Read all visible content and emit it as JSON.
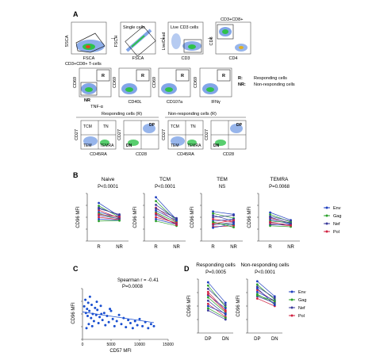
{
  "panel_letters": {
    "a": "A",
    "b": "B",
    "c": "C",
    "d": "D"
  },
  "panel_a": {
    "row1": {
      "plots": [
        {
          "y": "SSCA",
          "x": "FSCA"
        },
        {
          "y": "FSCH",
          "x": "FSCA"
        },
        {
          "y": "Live/Dead",
          "x": "CD3"
        },
        {
          "y": "CD8",
          "x": "CD4"
        }
      ],
      "gate_labels": [
        "Single cells",
        "Live CD3 cells",
        "CD3+CD8+"
      ]
    },
    "row2": {
      "group_label": "CD3+CD8+ T-cells",
      "plots": [
        {
          "y": "CD69",
          "x": "TNF-α"
        },
        {
          "y": "CD69",
          "x": "CD40L"
        },
        {
          "y": "CD69",
          "x": "CD107a"
        },
        {
          "y": "CD69",
          "x": "IFNγ"
        }
      ],
      "gate_r": "R",
      "gate_nr": "NR",
      "legend": {
        "r_key": "R:",
        "r_text": "Responding cells",
        "nr_key": "NR:",
        "nr_text": "Non-responding cells"
      }
    },
    "row3": {
      "responding_title": "Responding cells (R)",
      "nonresponding_title": "Non-responding cells (R)",
      "plots": [
        {
          "y": "CD27",
          "x": "CD45RA"
        },
        {
          "y": "CD27",
          "x": "CD28"
        },
        {
          "y": "CD27",
          "x": "CD45RA"
        },
        {
          "y": "CD27",
          "x": "CD28"
        }
      ],
      "quadrants": {
        "tcm": "TCM",
        "tn": "TN",
        "tem": "TEM",
        "temra": "TEMRA",
        "dp": "DP",
        "dn": "DN"
      }
    }
  },
  "panel_b": {
    "ylabel": "CD96 MFI",
    "charts": [
      {
        "title": "Naive",
        "pval": "P<0.0001"
      },
      {
        "title": "TCM",
        "pval": "P<0.0001"
      },
      {
        "title": "TEM",
        "pval": "NS"
      },
      {
        "title": "TEMRA",
        "pval": "P=0.0068"
      }
    ],
    "legend": [
      "Env",
      "Gag",
      "Nef",
      "Pol"
    ]
  },
  "panel_c": {
    "stat": "Spearman r = -0.41",
    "pval": "P=0.0008",
    "ylabel": "CD96 MFI",
    "xlabel": "CD57 MFI",
    "xticks": [
      "0",
      "5000",
      "10000",
      "15000"
    ]
  },
  "panel_d": {
    "ylabel": "CD96 MFI",
    "charts": [
      {
        "title": "Responding cells",
        "pval": "P=0.0005"
      },
      {
        "title": "Non-responding cells",
        "pval": "P<0.0001"
      }
    ],
    "legend": [
      "Env",
      "Gag",
      "Nef",
      "Pol"
    ]
  },
  "colors": {
    "Env": "#1f3fbf",
    "Gag": "#2aa02a",
    "Nef": "#3a3a9a",
    "Pol": "#d02040",
    "dots": "#1a4fd0"
  },
  "chart_data": [
    {
      "type": "line",
      "title": "Naive",
      "categories": [
        "R",
        "NR"
      ],
      "ylabel": "CD96 MFI",
      "series": [
        {
          "values": [
            8.0,
            5.2
          ]
        },
        {
          "values": [
            7.4,
            5.0
          ]
        },
        {
          "values": [
            7.0,
            5.4
          ]
        },
        {
          "values": [
            6.5,
            4.8
          ]
        },
        {
          "values": [
            6.1,
            4.9
          ]
        },
        {
          "values": [
            5.8,
            4.6
          ]
        },
        {
          "values": [
            5.4,
            4.7
          ]
        },
        {
          "values": [
            5.0,
            4.5
          ]
        },
        {
          "values": [
            4.6,
            4.4
          ]
        },
        {
          "values": [
            4.2,
            4.3
          ]
        },
        {
          "values": [
            6.8,
            5.6
          ]
        },
        {
          "values": [
            5.6,
            5.1
          ]
        }
      ]
    },
    {
      "type": "line",
      "title": "TCM",
      "categories": [
        "R",
        "NR"
      ],
      "ylabel": "CD96 MFI",
      "series": [
        {
          "values": [
            9.2,
            4.5
          ]
        },
        {
          "values": [
            8.4,
            4.2
          ]
        },
        {
          "values": [
            7.6,
            4.6
          ]
        },
        {
          "values": [
            7.0,
            4.0
          ]
        },
        {
          "values": [
            6.4,
            4.3
          ]
        },
        {
          "values": [
            6.0,
            3.9
          ]
        },
        {
          "values": [
            5.5,
            3.6
          ]
        },
        {
          "values": [
            5.0,
            3.8
          ]
        },
        {
          "values": [
            4.6,
            3.5
          ]
        },
        {
          "values": [
            4.2,
            3.2
          ]
        },
        {
          "values": [
            6.8,
            4.8
          ]
        },
        {
          "values": [
            5.8,
            3.4
          ]
        }
      ]
    },
    {
      "type": "line",
      "title": "TEM",
      "categories": [
        "R",
        "NR"
      ],
      "ylabel": "CD96 MFI",
      "series": [
        {
          "values": [
            6.2,
            5.6
          ]
        },
        {
          "values": [
            5.8,
            4.8
          ]
        },
        {
          "values": [
            5.0,
            5.4
          ]
        },
        {
          "values": [
            4.6,
            4.0
          ]
        },
        {
          "values": [
            4.2,
            4.6
          ]
        },
        {
          "values": [
            3.8,
            3.4
          ]
        },
        {
          "values": [
            3.4,
            3.9
          ]
        },
        {
          "values": [
            3.0,
            3.2
          ]
        },
        {
          "values": [
            2.8,
            3.6
          ]
        },
        {
          "values": [
            4.0,
            2.9
          ]
        },
        {
          "values": [
            5.4,
            4.2
          ]
        },
        {
          "values": [
            3.6,
            4.4
          ]
        }
      ]
    },
    {
      "type": "line",
      "title": "TEMRA",
      "categories": [
        "R",
        "NR"
      ],
      "ylabel": "CD96 MFI",
      "series": [
        {
          "values": [
            6.0,
            4.4
          ]
        },
        {
          "values": [
            5.6,
            4.0
          ]
        },
        {
          "values": [
            5.2,
            4.2
          ]
        },
        {
          "values": [
            4.8,
            3.8
          ]
        },
        {
          "values": [
            4.5,
            3.6
          ]
        },
        {
          "values": [
            4.2,
            3.9
          ]
        },
        {
          "values": [
            3.9,
            3.4
          ]
        },
        {
          "values": [
            3.6,
            3.2
          ]
        },
        {
          "values": [
            3.4,
            3.5
          ]
        },
        {
          "values": [
            3.2,
            3.0
          ]
        },
        {
          "values": [
            5.0,
            3.7
          ]
        },
        {
          "values": [
            4.0,
            3.3
          ]
        }
      ]
    },
    {
      "type": "scatter",
      "xlabel": "CD57 MFI",
      "ylabel": "CD96 MFI",
      "xlim": [
        0,
        15000
      ],
      "points": [
        [
          300,
          6.5
        ],
        [
          500,
          7.8
        ],
        [
          600,
          5.2
        ],
        [
          800,
          6.0
        ],
        [
          900,
          4.6
        ],
        [
          1000,
          7.2
        ],
        [
          1200,
          5.6
        ],
        [
          1300,
          8.4
        ],
        [
          1500,
          4.2
        ],
        [
          1600,
          6.8
        ],
        [
          1800,
          5.0
        ],
        [
          2000,
          3.6
        ],
        [
          2200,
          6.2
        ],
        [
          2400,
          4.8
        ],
        [
          2600,
          5.8
        ],
        [
          2800,
          3.2
        ],
        [
          3000,
          4.4
        ],
        [
          3200,
          6.6
        ],
        [
          3500,
          3.8
        ],
        [
          3800,
          5.2
        ],
        [
          4000,
          2.8
        ],
        [
          4300,
          4.6
        ],
        [
          4600,
          3.4
        ],
        [
          5000,
          5.6
        ],
        [
          5300,
          4.0
        ],
        [
          5600,
          2.6
        ],
        [
          6000,
          3.6
        ],
        [
          6400,
          4.8
        ],
        [
          6800,
          3.0
        ],
        [
          7200,
          4.2
        ],
        [
          7600,
          2.4
        ],
        [
          8000,
          3.8
        ],
        [
          8400,
          3.2
        ],
        [
          8800,
          2.2
        ],
        [
          9200,
          3.6
        ],
        [
          9600,
          2.8
        ],
        [
          10000,
          4.0
        ],
        [
          10500,
          2.6
        ],
        [
          11000,
          3.4
        ],
        [
          11500,
          2.2
        ],
        [
          12000,
          3.0
        ],
        [
          12500,
          2.6
        ],
        [
          700,
          2.2
        ],
        [
          1100,
          3.0
        ],
        [
          1700,
          2.6
        ],
        [
          2500,
          7.4
        ],
        [
          3300,
          5.0
        ],
        [
          4800,
          6.0
        ]
      ],
      "trend": {
        "x": [
          0,
          12500
        ],
        "y": [
          5.4,
          3.3
        ]
      }
    },
    {
      "type": "line",
      "title": "Responding cells",
      "categories": [
        "DP",
        "DN"
      ],
      "ylabel": "CD96 MFI",
      "series": [
        {
          "values": [
            9.4,
            5.6
          ]
        },
        {
          "values": [
            8.8,
            4.8
          ]
        },
        {
          "values": [
            8.2,
            5.2
          ]
        },
        {
          "values": [
            7.6,
            4.2
          ]
        },
        {
          "values": [
            7.0,
            4.6
          ]
        },
        {
          "values": [
            6.6,
            3.8
          ]
        },
        {
          "values": [
            6.0,
            3.4
          ]
        },
        {
          "values": [
            5.4,
            3.0
          ]
        },
        {
          "values": [
            5.0,
            3.6
          ]
        },
        {
          "values": [
            4.6,
            2.8
          ]
        },
        {
          "values": [
            4.2,
            2.5
          ]
        },
        {
          "values": [
            7.2,
            4.0
          ]
        }
      ]
    },
    {
      "type": "line",
      "title": "Non-responding cells",
      "categories": [
        "DP",
        "DN"
      ],
      "ylabel": "CD96 MFI",
      "series": [
        {
          "values": [
            9.6,
            6.8
          ]
        },
        {
          "values": [
            9.0,
            6.2
          ]
        },
        {
          "values": [
            8.6,
            6.5
          ]
        },
        {
          "values": [
            8.0,
            5.8
          ]
        },
        {
          "values": [
            7.6,
            6.0
          ]
        },
        {
          "values": [
            7.2,
            5.4
          ]
        },
        {
          "values": [
            6.8,
            5.6
          ]
        },
        {
          "values": [
            6.4,
            5.0
          ]
        },
        {
          "values": [
            8.3,
            5.2
          ]
        },
        {
          "values": [
            7.0,
            5.9
          ]
        }
      ]
    }
  ]
}
